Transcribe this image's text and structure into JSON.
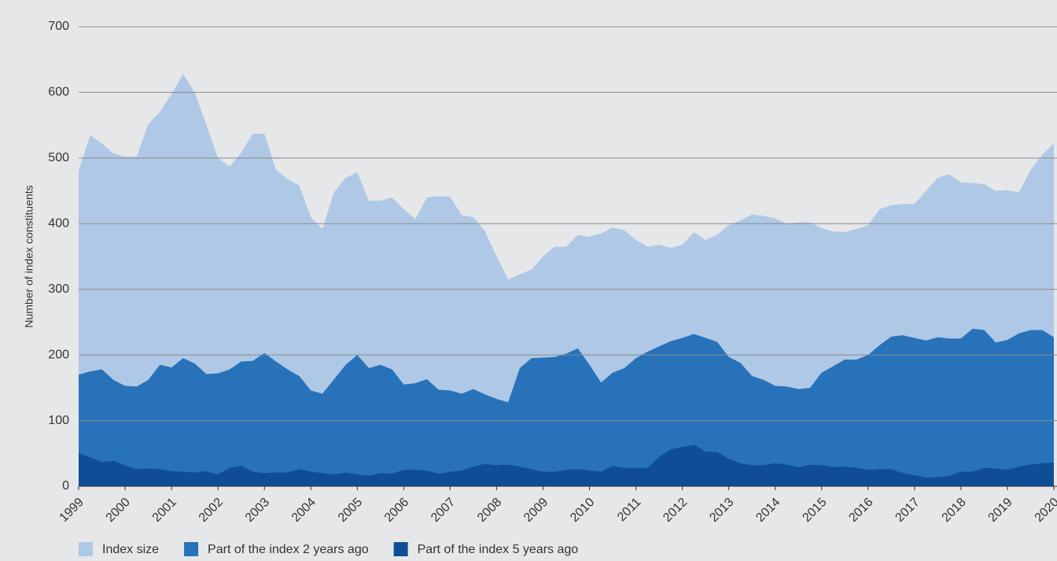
{
  "chart_data": {
    "type": "area",
    "ylabel": "Number of index constituents",
    "x": [
      1999,
      1999.25,
      1999.5,
      1999.75,
      2000,
      2000.25,
      2000.5,
      2000.75,
      2001,
      2001.25,
      2001.5,
      2001.75,
      2002,
      2002.25,
      2002.5,
      2002.75,
      2003,
      2003.25,
      2003.5,
      2003.75,
      2004,
      2004.25,
      2004.5,
      2004.75,
      2005,
      2005.25,
      2005.5,
      2005.75,
      2006,
      2006.25,
      2006.5,
      2006.75,
      2007,
      2007.25,
      2007.5,
      2007.75,
      2008,
      2008.25,
      2008.5,
      2008.75,
      2009,
      2009.25,
      2009.5,
      2009.75,
      2010,
      2010.25,
      2010.5,
      2010.75,
      2011,
      2011.25,
      2011.5,
      2011.75,
      2012,
      2012.25,
      2012.5,
      2012.75,
      2013,
      2013.25,
      2013.5,
      2013.75,
      2014,
      2014.25,
      2014.5,
      2014.75,
      2015,
      2015.25,
      2015.5,
      2015.75,
      2016,
      2016.25,
      2016.5,
      2016.75,
      2017,
      2017.25,
      2017.5,
      2017.75,
      2018,
      2018.25,
      2018.5,
      2018.75,
      2019,
      2019.25,
      2019.5,
      2019.75,
      2020
    ],
    "series": [
      {
        "name": "Index size",
        "color": "#aec8e6",
        "values": [
          480,
          535,
          522,
          507,
          502,
          502,
          552,
          570,
          598,
          628,
          600,
          550,
          500,
          487,
          508,
          537,
          537,
          482,
          468,
          458,
          410,
          392,
          448,
          470,
          478,
          435,
          435,
          440,
          422,
          407,
          440,
          442,
          441,
          413,
          410,
          388,
          350,
          315,
          323,
          330,
          350,
          365,
          365,
          383,
          380,
          385,
          394,
          390,
          375,
          365,
          368,
          363,
          368,
          387,
          375,
          383,
          398,
          405,
          414,
          412,
          408,
          400,
          402,
          402,
          393,
          388,
          387,
          392,
          398,
          422,
          428,
          430,
          430,
          450,
          470,
          475,
          463,
          462,
          460,
          450,
          451,
          448,
          482,
          505,
          522
        ]
      },
      {
        "name": "Part of the index 2 years ago",
        "color": "#2872b9",
        "values": [
          170,
          175,
          178,
          162,
          153,
          152,
          162,
          185,
          181,
          195,
          187,
          171,
          172,
          178,
          190,
          191,
          203,
          190,
          178,
          168,
          146,
          141,
          163,
          185,
          200,
          180,
          185,
          178,
          155,
          157,
          163,
          147,
          146,
          141,
          148,
          140,
          133,
          128,
          180,
          195,
          196,
          197,
          202,
          210,
          185,
          158,
          173,
          180,
          195,
          205,
          213,
          221,
          226,
          232,
          226,
          220,
          197,
          188,
          168,
          162,
          153,
          152,
          148,
          150,
          173,
          183,
          193,
          193,
          200,
          215,
          228,
          230,
          226,
          222,
          227,
          225,
          225,
          240,
          238,
          219,
          223,
          233,
          238,
          238,
          227
        ]
      },
      {
        "name": "Part of the index 5 years ago",
        "color": "#0f4e96",
        "values": [
          50,
          44,
          37,
          39,
          32,
          26,
          27,
          26,
          23,
          22,
          21,
          23,
          18,
          28,
          31,
          22,
          20,
          21,
          21,
          26,
          22,
          20,
          18,
          21,
          18,
          16,
          20,
          19,
          25,
          25,
          24,
          19,
          22,
          24,
          30,
          34,
          32,
          33,
          30,
          26,
          22,
          22,
          25,
          26,
          24,
          22,
          31,
          28,
          28,
          28,
          45,
          56,
          60,
          63,
          53,
          52,
          42,
          35,
          32,
          32,
          35,
          33,
          29,
          33,
          32,
          29,
          30,
          28,
          25,
          26,
          26,
          20,
          17,
          13,
          14,
          16,
          22,
          22,
          28,
          27,
          25,
          30,
          33,
          35,
          36
        ]
      }
    ],
    "xlim": [
      1999,
      2020
    ],
    "xticks": [
      1999,
      2000,
      2001,
      2002,
      2003,
      2004,
      2005,
      2006,
      2007,
      2008,
      2009,
      2010,
      2011,
      2012,
      2013,
      2014,
      2015,
      2016,
      2017,
      2018,
      2019,
      2020
    ],
    "ylim": [
      0,
      700
    ],
    "yticks": [
      0,
      100,
      200,
      300,
      400,
      500,
      600,
      700
    ],
    "grid": true,
    "legend": "bottom-left"
  }
}
